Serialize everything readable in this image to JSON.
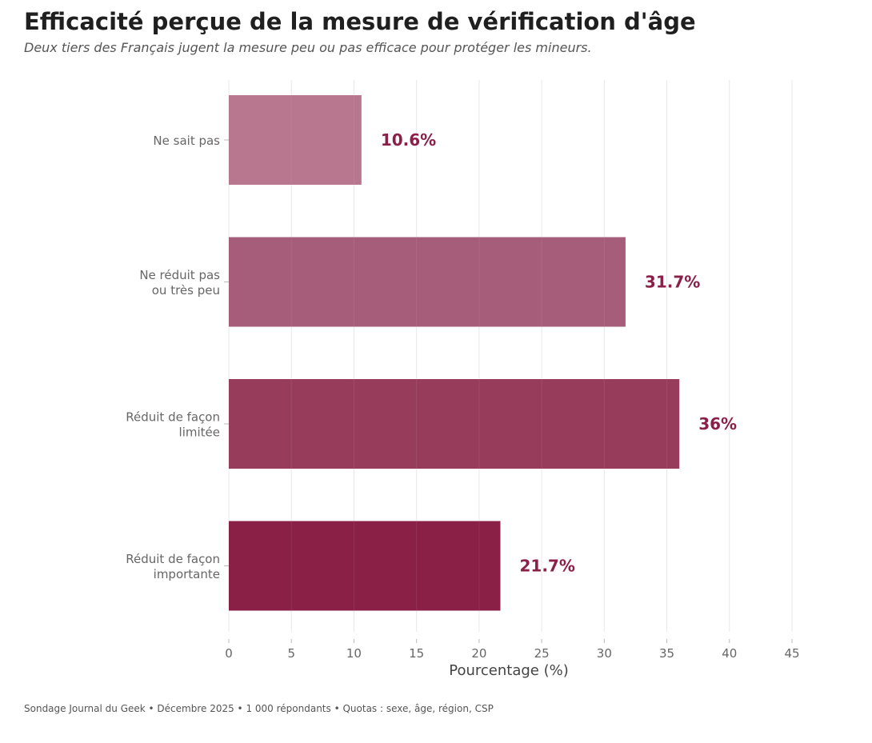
{
  "header": {
    "title": "Efficacité perçue de la mesure de vérification d'âge",
    "subtitle": "Deux tiers des Français jugent la mesure peu ou pas efficace pour protéger les mineurs."
  },
  "footer": {
    "source": "Sondage Journal du Geek • Décembre 2025 • 1 000 répondants • Quotas : sexe, âge, région, CSP"
  },
  "chart_data": {
    "type": "bar",
    "orientation": "horizontal",
    "title": "Efficacité perçue de la mesure de vérification d'âge",
    "subtitle": "Deux tiers des Français jugent la mesure peu ou pas efficace pour protéger les mineurs.",
    "xlabel": "Pourcentage (%)",
    "ylabel": "",
    "xlim": [
      0,
      45
    ],
    "xticks": [
      0,
      5,
      10,
      15,
      20,
      25,
      30,
      35,
      40,
      45
    ],
    "grid": true,
    "legend": "none",
    "categories": [
      [
        "Ne sait pas"
      ],
      [
        "Ne réduit pas",
        "ou très peu"
      ],
      [
        "Réduit de façon",
        "limitée"
      ],
      [
        "Réduit de façon",
        "importante"
      ]
    ],
    "values": [
      10.6,
      31.7,
      36,
      21.7
    ],
    "data_labels": [
      "10.6%",
      "31.7%",
      "36%",
      "21.7%"
    ],
    "colors": [
      "#b8768f",
      "#a65d79",
      "#973d5b",
      "#8a2046"
    ],
    "label_color": "#8a2046",
    "tick_color": "#666666",
    "grid_color": "#e8e8e8"
  }
}
